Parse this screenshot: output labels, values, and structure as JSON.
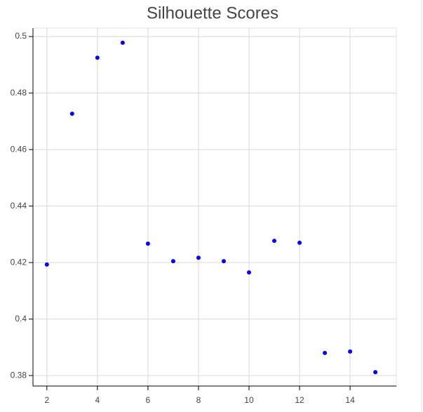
{
  "chart_data": {
    "type": "scatter",
    "title": "Silhouette Scores",
    "x": [
      2,
      3,
      4,
      5,
      6,
      7,
      8,
      9,
      10,
      11,
      12,
      13,
      14,
      15
    ],
    "values": [
      0.4193,
      0.4727,
      0.4925,
      0.4978,
      0.4267,
      0.4205,
      0.4217,
      0.4205,
      0.4165,
      0.4277,
      0.427,
      0.388,
      0.3885,
      0.3812
    ],
    "color": "#0000ff",
    "xlim": [
      1.45,
      15.83
    ],
    "xticks": [
      2,
      4,
      6,
      8,
      10,
      12,
      14
    ],
    "ylim": [
      0.3763,
      0.503
    ],
    "yticks": [
      0.38,
      0.4,
      0.42,
      0.44,
      0.46,
      0.48,
      0.5
    ],
    "grid": true
  }
}
